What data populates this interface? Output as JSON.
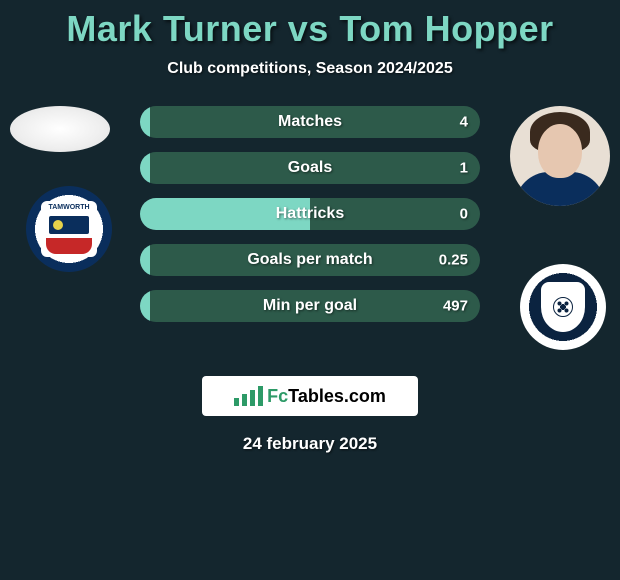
{
  "theme": {
    "background": "#14262e",
    "accent_light": "#7dd7c3",
    "accent_dark": "#2d5a4a",
    "text_shadow": "rgba(0,0,0,0.6)",
    "brand_green": "#2d9a67"
  },
  "header": {
    "player1": "Mark Turner",
    "vs": "vs",
    "player2": "Tom Hopper",
    "title_fontsize": 36,
    "title_color": "#7dd7c3",
    "subtitle": "Club competitions, Season 2024/2025",
    "subtitle_fontsize": 16
  },
  "players": {
    "p1": {
      "name": "Mark Turner",
      "club_name": "Tamworth",
      "club_colors": {
        "ring": "#0a2e5c",
        "shield_top": "#ffffff",
        "shield_mid": "#0a2e5c",
        "shield_bot": "#c62828",
        "accent": "#e7d24a"
      }
    },
    "p2": {
      "name": "Tom Hopper",
      "club_name": "Southend United",
      "club_colors": {
        "ring": "#ffffff",
        "core": "#0b2340",
        "shield": "#ffffff"
      },
      "headshot_colors": {
        "skin": "#e6c7b0",
        "hair": "#3a2a1e",
        "shirt": "#0a2e5c",
        "bg": "#e8dfd4"
      }
    }
  },
  "stats": {
    "pill_color_left": "#7dd7c3",
    "pill_color_right": "#2d5a4a",
    "label_fontsize": 16,
    "value_fontsize": 15,
    "rows": [
      {
        "label": "Matches",
        "p1": "",
        "p2": "4",
        "left_pct": 3,
        "right_pct": 97
      },
      {
        "label": "Goals",
        "p1": "",
        "p2": "1",
        "left_pct": 3,
        "right_pct": 97
      },
      {
        "label": "Hattricks",
        "p1": "",
        "p2": "0",
        "left_pct": 50,
        "right_pct": 50
      },
      {
        "label": "Goals per match",
        "p1": "",
        "p2": "0.25",
        "left_pct": 3,
        "right_pct": 97
      },
      {
        "label": "Min per goal",
        "p1": "",
        "p2": "497",
        "left_pct": 3,
        "right_pct": 97
      }
    ]
  },
  "badge": {
    "brand_prefix": "Fc",
    "brand_rest": "Tables.com",
    "bg": "#ffffff",
    "icon_bar_heights": [
      8,
      12,
      16,
      20
    ]
  },
  "footer": {
    "date": "24 february 2025",
    "fontsize": 17
  }
}
